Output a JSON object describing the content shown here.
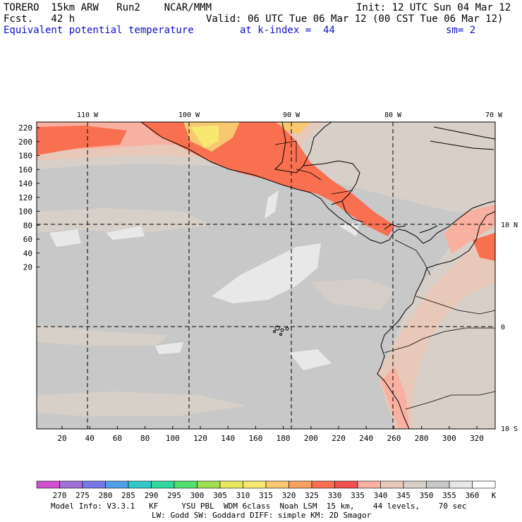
{
  "header": {
    "model": "TORERO  15km ARW   Run2    NCAR/MMM",
    "init": "Init: 12 UTC Sun 04 Mar 12",
    "fcst": "Fcst.   42 h",
    "valid": "Valid: 06 UTC Tue 06 Mar 12 (00 CST Tue 06 Mar 12)",
    "field": "Equivalent potential temperature",
    "level": "at k-index =  44",
    "smoothing": "sm= 2"
  },
  "map": {
    "top_lon_labels": [
      "110 W",
      "100 W",
      "90 W",
      "80 W",
      "70 W"
    ],
    "right_lat_labels": [
      "10 N",
      "0",
      "10 S"
    ],
    "y_ticks": [
      "220",
      "200",
      "180",
      "160",
      "140",
      "120",
      "100",
      "80",
      "60",
      "40",
      "20"
    ],
    "x_ticks": [
      "20",
      "40",
      "60",
      "80",
      "100",
      "120",
      "140",
      "160",
      "180",
      "200",
      "220",
      "240",
      "260",
      "280",
      "300",
      "320"
    ]
  },
  "colorbar": {
    "values": [
      "270",
      "275",
      "280",
      "285",
      "290",
      "295",
      "300",
      "305",
      "310",
      "315",
      "320",
      "325",
      "330",
      "335",
      "340",
      "345",
      "350",
      "355",
      "360"
    ],
    "unit": "K",
    "colors": [
      "#d050d0",
      "#a070d8",
      "#7878e8",
      "#50a0e8",
      "#30c8c8",
      "#30d8a0",
      "#50e070",
      "#a0e050",
      "#e8e860",
      "#f8e870",
      "#f8c870",
      "#f8a060",
      "#f87050",
      "#f05050",
      "#f8b0a0",
      "#e8c8b8",
      "#d8d0c8",
      "#c8c8c8",
      "#e8e8e8",
      "#ffffff"
    ]
  },
  "footer": {
    "line1": "Model Info: V3.3.1   KF     YSU PBL  WDM 6class  Noah LSM  15 km,    44 levels,    70 sec",
    "line2": "LW: Godd SW: Goddard DIFF: simple KM: 2D Smagor"
  }
}
